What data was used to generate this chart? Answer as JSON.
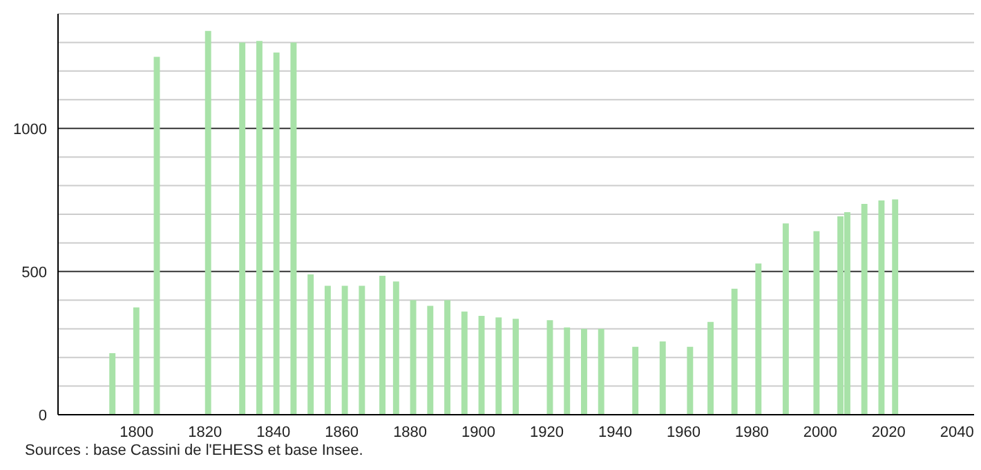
{
  "chart_data": {
    "type": "bar",
    "color": "#a8e2a8",
    "x": [
      1793,
      1800,
      1806,
      1821,
      1831,
      1836,
      1841,
      1846,
      1851,
      1856,
      1861,
      1866,
      1872,
      1876,
      1881,
      1886,
      1891,
      1896,
      1901,
      1906,
      1911,
      1921,
      1926,
      1931,
      1936,
      1946,
      1954,
      1962,
      1968,
      1975,
      1982,
      1990,
      1999,
      2006,
      2008,
      2013,
      2018,
      2022
    ],
    "values": [
      215,
      375,
      1250,
      1340,
      1300,
      1305,
      1265,
      1300,
      490,
      450,
      450,
      450,
      485,
      465,
      400,
      380,
      400,
      360,
      345,
      340,
      335,
      330,
      305,
      300,
      300,
      237,
      256,
      237,
      324,
      440,
      528,
      668,
      641,
      693,
      707,
      736,
      748,
      752
    ],
    "xlim": [
      1777,
      2045
    ],
    "xticks": [
      1800,
      1820,
      1840,
      1860,
      1880,
      1900,
      1920,
      1940,
      1960,
      1980,
      2000,
      2020,
      2040
    ],
    "ylim": [
      0,
      1400
    ],
    "yticks": [
      0,
      {
        "value": 100,
        "label": null
      },
      {
        "value": 200,
        "label": null
      },
      {
        "value": 300,
        "label": null
      },
      {
        "value": 400,
        "label": null
      },
      500,
      {
        "value": 600,
        "label": null
      },
      {
        "value": 700,
        "label": null
      },
      {
        "value": 800,
        "label": null
      },
      {
        "value": 900,
        "label": null
      },
      1000,
      {
        "value": 1100,
        "label": null
      },
      {
        "value": 1200,
        "label": null
      },
      {
        "value": 1300,
        "label": null
      },
      {
        "value": 1400,
        "label": null
      }
    ],
    "grid": "y",
    "annotations": [
      "Sources : base Cassini de l'EHESS et base Insee."
    ]
  }
}
